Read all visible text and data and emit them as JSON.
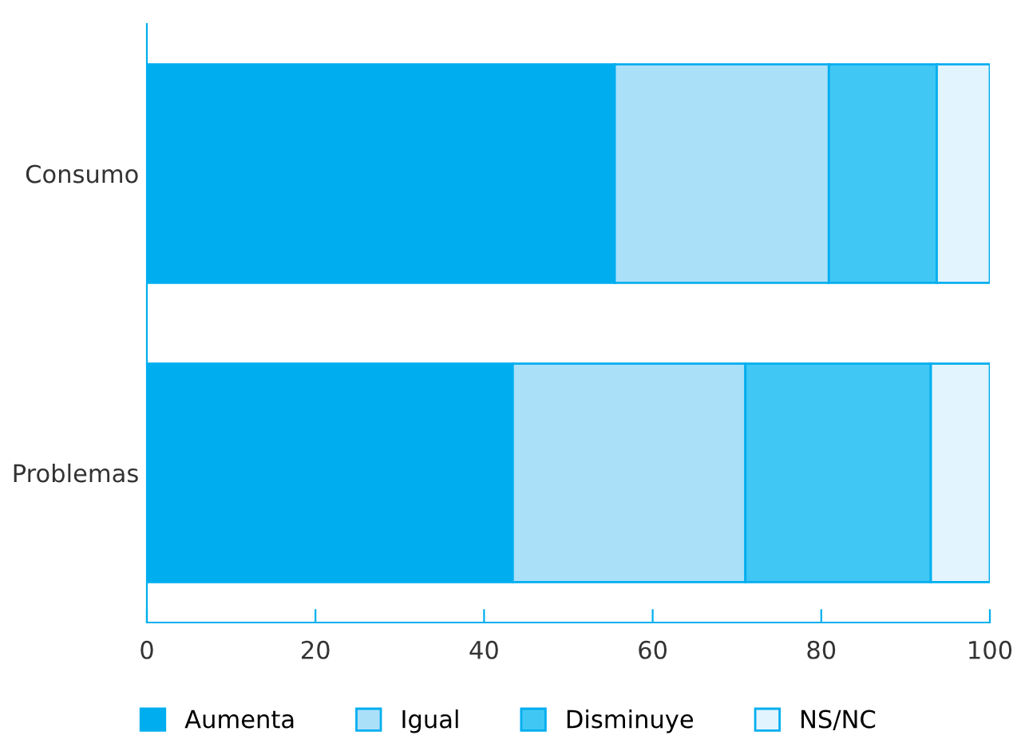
{
  "chart_data": {
    "type": "bar",
    "orientation": "horizontal",
    "stacked": true,
    "categories": [
      "Consumo",
      "Problemas"
    ],
    "series": [
      {
        "name": "Aumenta",
        "color": "#00aeef",
        "values": [
          55.5,
          43.4
        ]
      },
      {
        "name": "Igual",
        "color": "#abe0f9",
        "values": [
          25.4,
          27.6
        ]
      },
      {
        "name": "Disminuye",
        "color": "#40c7f4",
        "values": [
          12.8,
          22.0
        ]
      },
      {
        "name": "NS/NC",
        "color": "#e2f4fd",
        "values": [
          6.3,
          7.0
        ]
      }
    ],
    "xlim": [
      0,
      100
    ],
    "xticks": [
      0,
      20,
      40,
      60,
      80,
      100
    ],
    "grid": false,
    "legend": "bottom"
  }
}
